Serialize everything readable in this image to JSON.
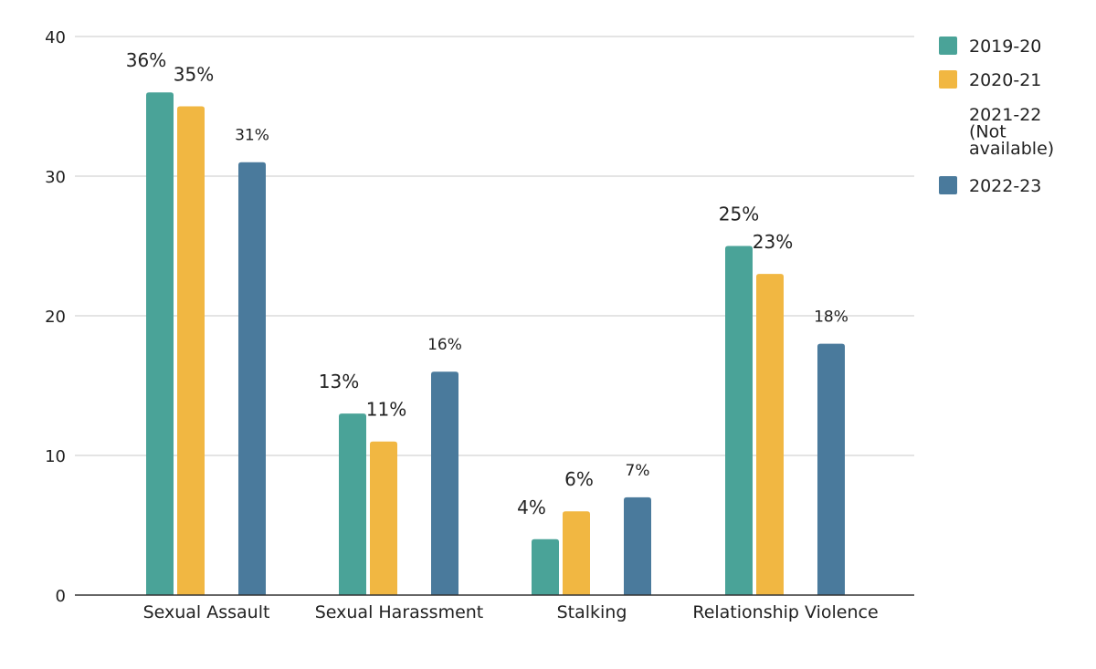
{
  "chart_data": {
    "type": "bar",
    "categories": [
      "Sexual Assault",
      "Sexual Harassment",
      "Stalking",
      "Relationship Violence"
    ],
    "series": [
      {
        "name": "2019-20",
        "color": "#4aa398",
        "values": [
          36,
          13,
          4,
          25
        ],
        "labels": [
          "36%",
          "13%",
          "4%",
          "25%"
        ]
      },
      {
        "name": "2020-21",
        "color": "#f1b742",
        "values": [
          35,
          11,
          6,
          23
        ],
        "labels": [
          "35%",
          "11%",
          "6%",
          "23%"
        ]
      },
      {
        "name": "2021-22 (Not available)",
        "legend_lines": [
          "2021-22",
          "(Not",
          "available)"
        ],
        "color": "",
        "values": [
          null,
          null,
          null,
          null
        ],
        "labels": [
          "",
          "",
          "",
          ""
        ]
      },
      {
        "name": "2022-23",
        "color": "#4a7a9c",
        "values": [
          31,
          16,
          7,
          18
        ],
        "labels": [
          "31%",
          "16%",
          "7%",
          "18%"
        ]
      }
    ],
    "yticks": [
      0,
      10,
      20,
      30,
      40
    ],
    "ylim": [
      0,
      40
    ],
    "grid": true,
    "legend": "right",
    "title": "",
    "xlabel": "",
    "ylabel": ""
  }
}
